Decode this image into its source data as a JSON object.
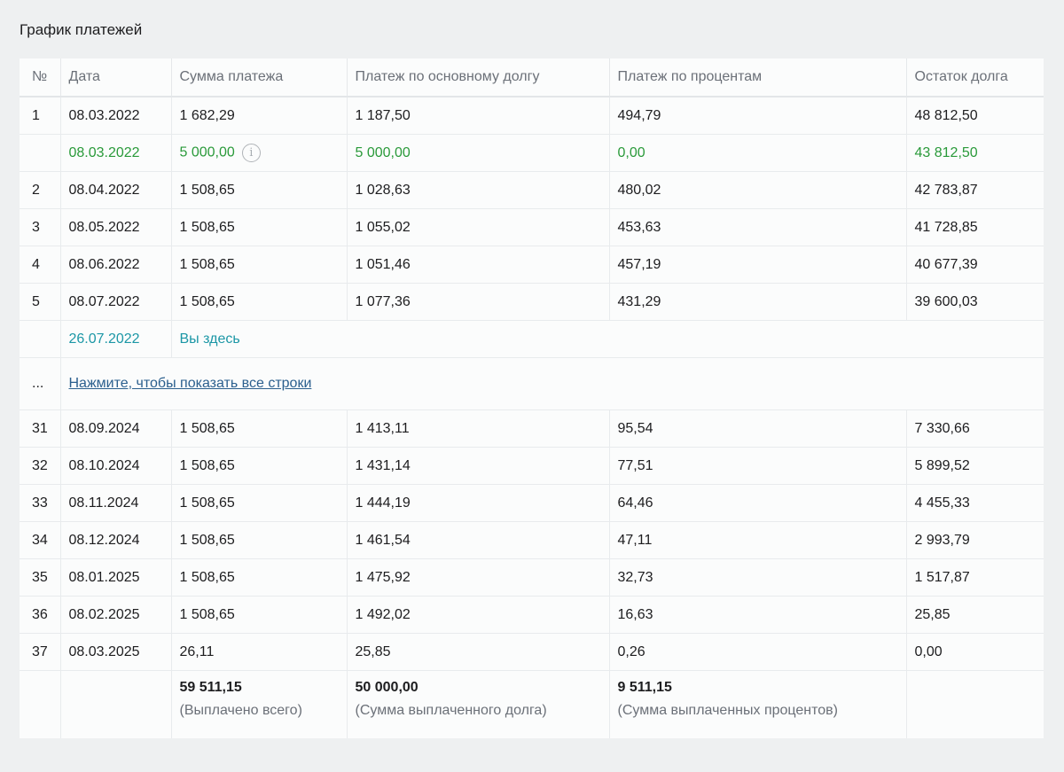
{
  "section_title": "График платежей",
  "headers": [
    "№",
    "Дата",
    "Сумма платежа",
    "Платеж по основному долгу",
    "Платеж по процентам",
    "Остаток долга"
  ],
  "rows_top": [
    {
      "n": "1",
      "date": "08.03.2022",
      "sum": "1 682,29",
      "principal": "1 187,50",
      "interest": "494,79",
      "balance": "48 812,50"
    }
  ],
  "early_payment": {
    "date": "08.03.2022",
    "sum": "5 000,00",
    "principal": "5 000,00",
    "interest": "0,00",
    "balance": "43 812,50",
    "icon": "info-icon"
  },
  "rows_mid": [
    {
      "n": "2",
      "date": "08.04.2022",
      "sum": "1 508,65",
      "principal": "1 028,63",
      "interest": "480,02",
      "balance": "42 783,87"
    },
    {
      "n": "3",
      "date": "08.05.2022",
      "sum": "1 508,65",
      "principal": "1 055,02",
      "interest": "453,63",
      "balance": "41 728,85"
    },
    {
      "n": "4",
      "date": "08.06.2022",
      "sum": "1 508,65",
      "principal": "1 051,46",
      "interest": "457,19",
      "balance": "40 677,39"
    },
    {
      "n": "5",
      "date": "08.07.2022",
      "sum": "1 508,65",
      "principal": "1 077,36",
      "interest": "431,29",
      "balance": "39 600,03"
    }
  ],
  "current_marker": {
    "date": "26.07.2022",
    "label": "Вы здесь"
  },
  "ellipsis": {
    "symbol": "...",
    "link": "Нажмите, чтобы показать все строки"
  },
  "rows_bottom": [
    {
      "n": "31",
      "date": "08.09.2024",
      "sum": "1 508,65",
      "principal": "1 413,11",
      "interest": "95,54",
      "balance": "7 330,66"
    },
    {
      "n": "32",
      "date": "08.10.2024",
      "sum": "1 508,65",
      "principal": "1 431,14",
      "interest": "77,51",
      "balance": "5 899,52"
    },
    {
      "n": "33",
      "date": "08.11.2024",
      "sum": "1 508,65",
      "principal": "1 444,19",
      "interest": "64,46",
      "balance": "4 455,33"
    },
    {
      "n": "34",
      "date": "08.12.2024",
      "sum": "1 508,65",
      "principal": "1 461,54",
      "interest": "47,11",
      "balance": "2 993,79"
    },
    {
      "n": "35",
      "date": "08.01.2025",
      "sum": "1 508,65",
      "principal": "1 475,92",
      "interest": "32,73",
      "balance": "1 517,87"
    },
    {
      "n": "36",
      "date": "08.02.2025",
      "sum": "1 508,65",
      "principal": "1 492,02",
      "interest": "16,63",
      "balance": "25,85"
    },
    {
      "n": "37",
      "date": "08.03.2025",
      "sum": "26,11",
      "principal": "25,85",
      "interest": "0,26",
      "balance": "0,00"
    }
  ],
  "totals": {
    "sum": {
      "value": "59 511,15",
      "caption": "(Выплачено всего)"
    },
    "principal": {
      "value": "50 000,00",
      "caption": "(Сумма выплаченного долга)"
    },
    "interest": {
      "value": "9 511,15",
      "caption": "(Сумма выплаченных процентов)"
    }
  },
  "colors": {
    "early_payment": "#2a9a3a",
    "current_marker": "#1c97a6",
    "link": "#2b5f8e"
  }
}
